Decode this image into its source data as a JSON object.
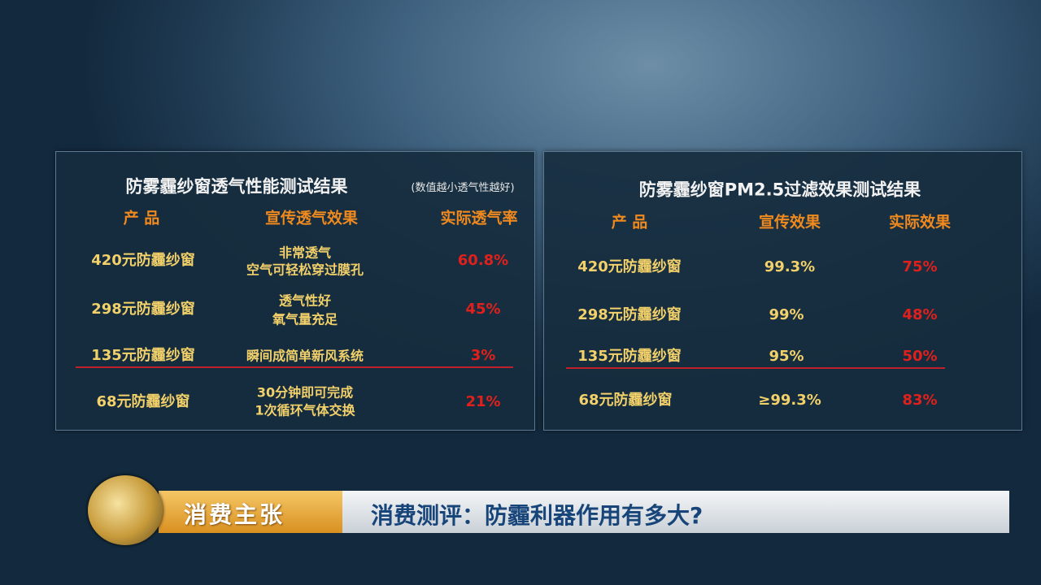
{
  "left_table": {
    "title": "防雾霾纱窗透气性能测试结果",
    "note": "(数值越小透气性越好)",
    "headers": [
      "产 品",
      "宣传透气效果",
      "实际透气率"
    ],
    "rows": [
      {
        "product": "420元防霾纱窗",
        "promo": [
          "非常透气",
          "空气可轻松穿过膜孔"
        ],
        "actual": "60.8%"
      },
      {
        "product": "298元防霾纱窗",
        "promo": [
          "透气性好",
          "氧气量充足"
        ],
        "actual": "45%"
      },
      {
        "product": "135元防霾纱窗",
        "promo": [
          "瞬间成简单新风系统"
        ],
        "actual": "3%"
      },
      {
        "product": "68元防霾纱窗",
        "promo": [
          "30分钟即可完成",
          "1次循环气体交换"
        ],
        "actual": "21%"
      }
    ]
  },
  "right_table": {
    "title": "防雾霾纱窗PM2.5过滤效果测试结果",
    "headers": [
      "产 品",
      "宣传效果",
      "实际效果"
    ],
    "rows": [
      {
        "product": "420元防霾纱窗",
        "promo": "99.3%",
        "actual": "75%"
      },
      {
        "product": "298元防霾纱窗",
        "promo": "99%",
        "actual": "48%"
      },
      {
        "product": "135元防霾纱窗",
        "promo": "95%",
        "actual": "50%"
      },
      {
        "product": "68元防霾纱窗",
        "promo": "≥99.3%",
        "actual": "83%"
      }
    ]
  },
  "lower_third": {
    "show_name": "消费主张",
    "headline": "消费测评：防霾利器作用有多大?"
  },
  "colors": {
    "header": "#f08a1e",
    "product": "#f2d06a",
    "actual": "#e0201c",
    "highlight_line": "#c0202a"
  }
}
